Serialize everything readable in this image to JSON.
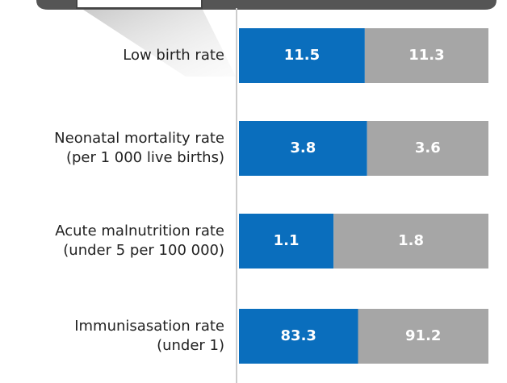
{
  "chart_data": {
    "type": "stacked_bar_horizontal",
    "categories": [
      [
        "Low birth rate"
      ],
      [
        "Neonatal mortality rate",
        "(per 1 000 live births)"
      ],
      [
        "Acute malnutrition rate",
        "(under 5 per 100 000)"
      ],
      [
        "Immunisasation rate",
        "(under 1)"
      ]
    ],
    "series": [
      {
        "color": "#0a6ebd",
        "values": [
          11.5,
          3.8,
          1.1,
          83.3
        ]
      },
      {
        "color": "#a6a6a6",
        "values": [
          11.3,
          3.6,
          1.8,
          91.2
        ]
      }
    ]
  }
}
